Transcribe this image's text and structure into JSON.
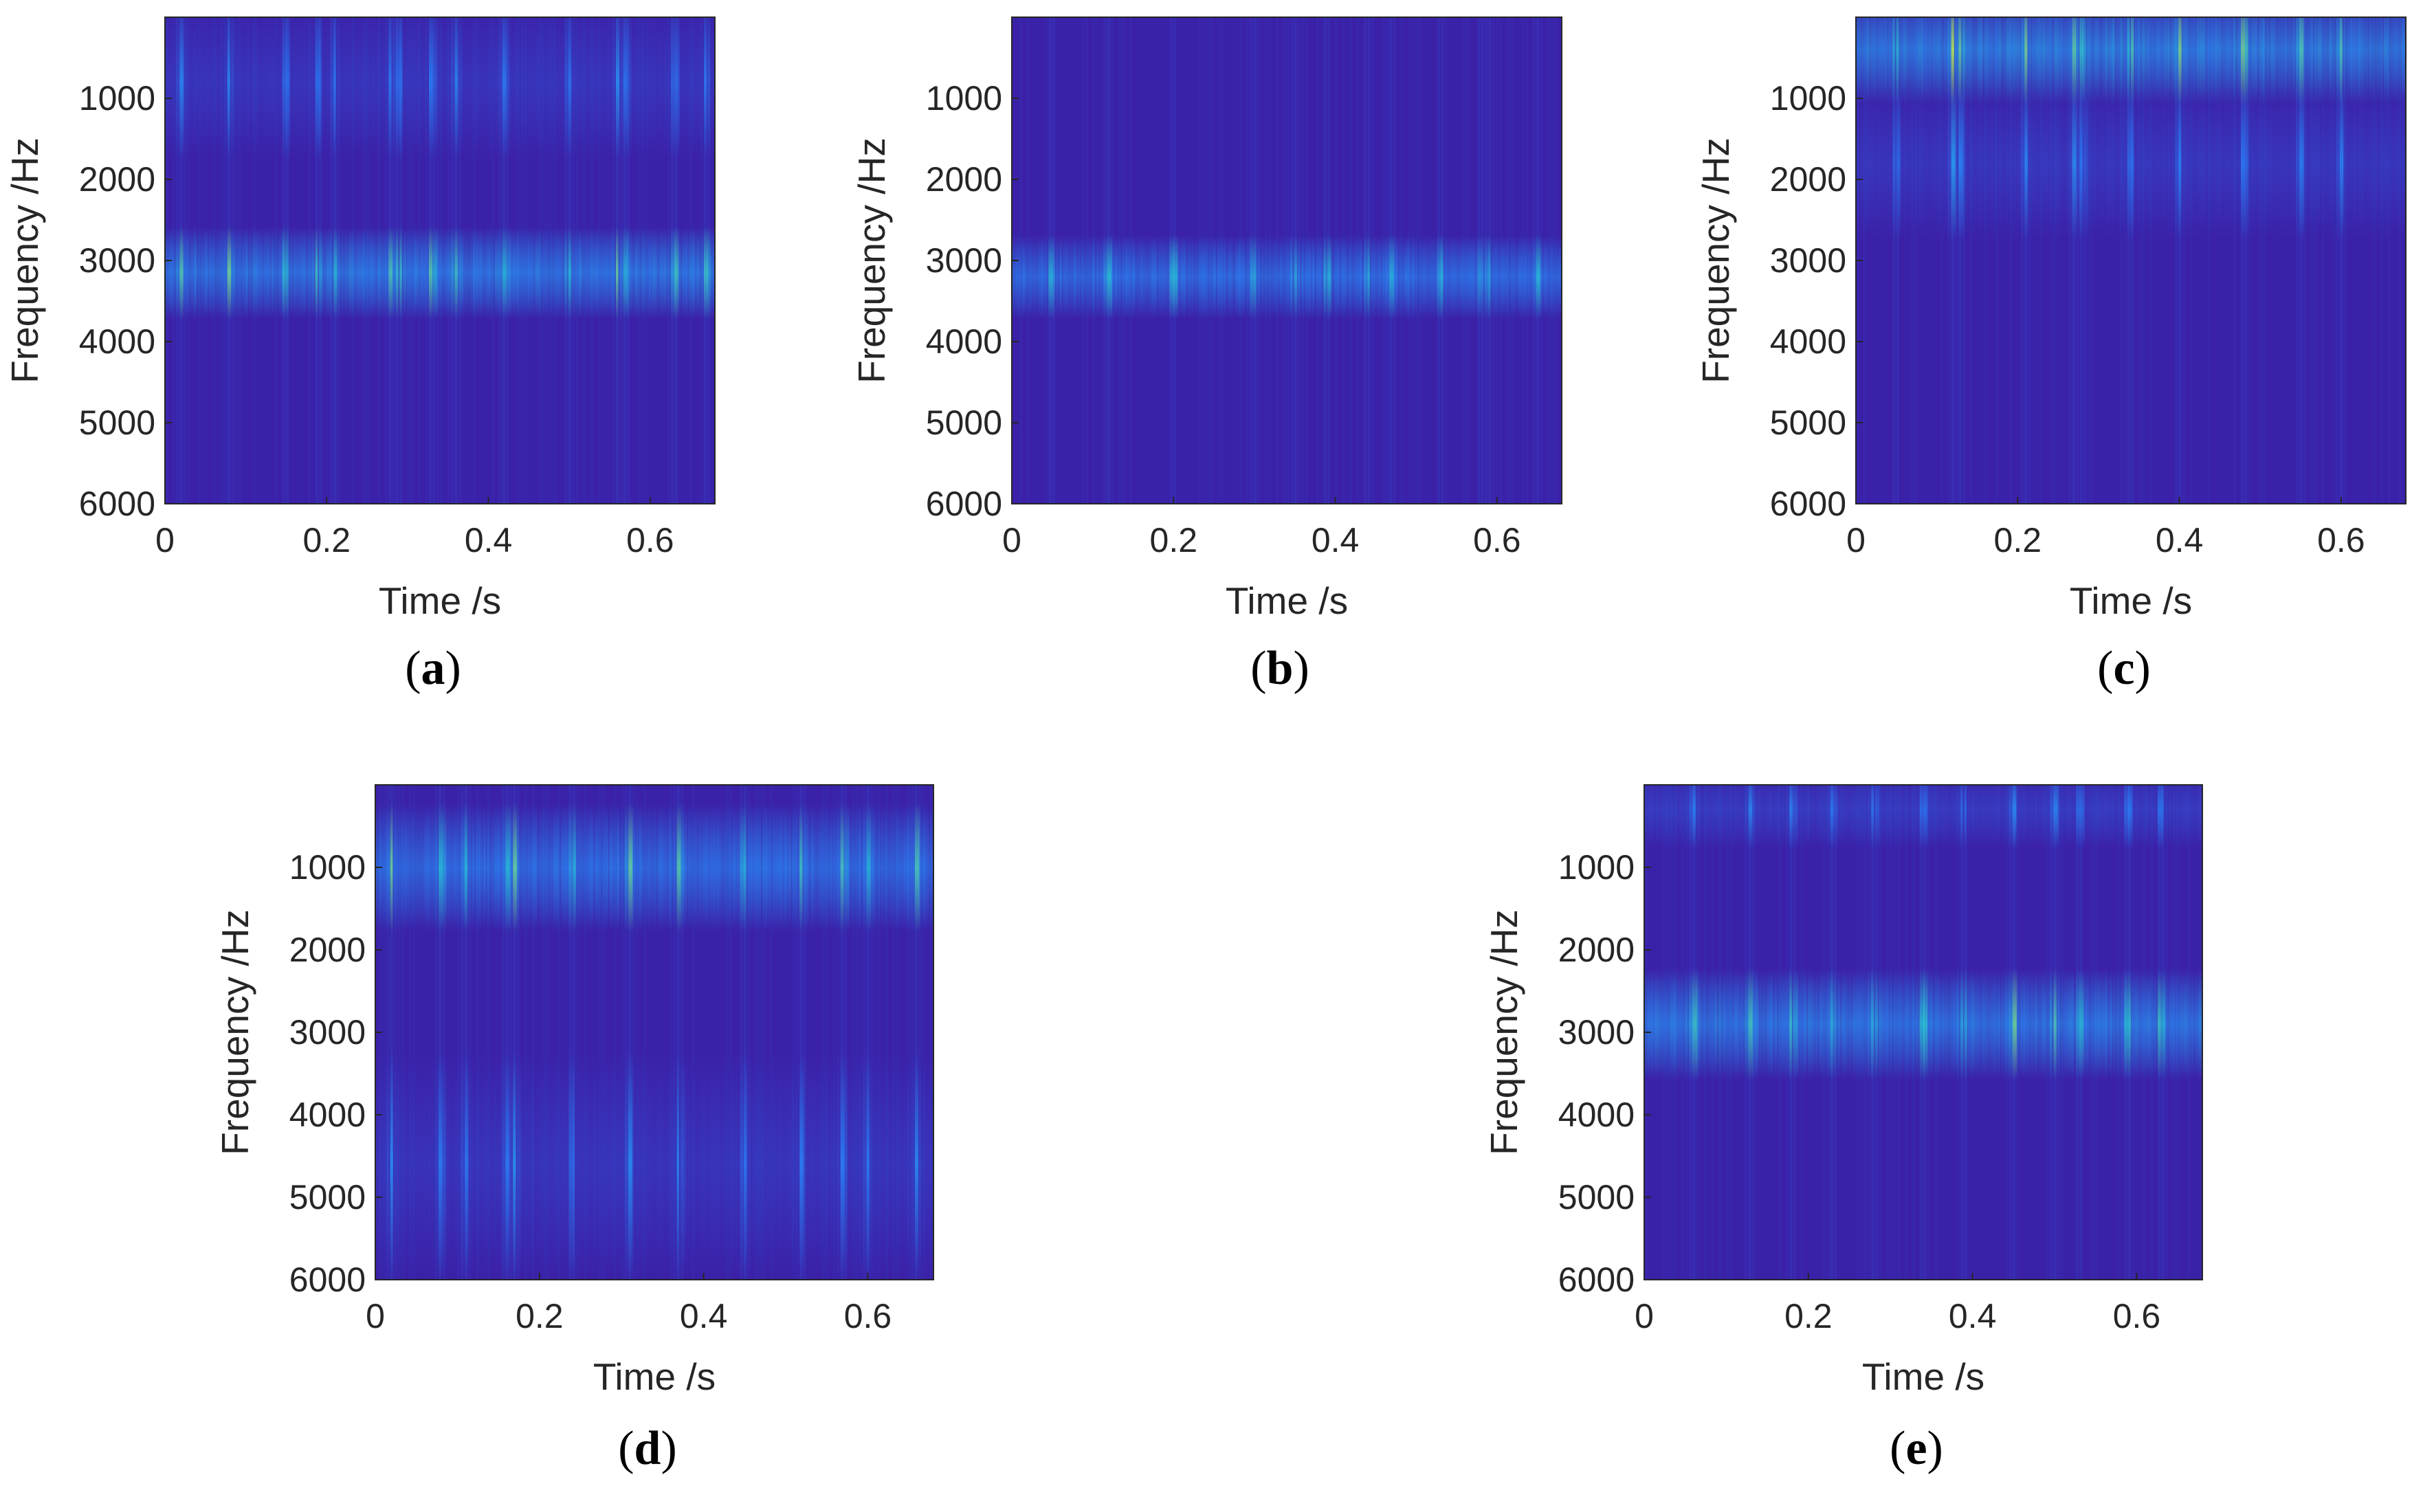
{
  "figure": {
    "colors": {
      "bg": "#3b21a8",
      "low": "#3b29b3",
      "mid": "#2a7ef5",
      "high": "#28c8d0",
      "peak": "#cfe33b"
    }
  },
  "chart_data": [
    {
      "type": "heatmap",
      "panel": "a",
      "title": "",
      "xlabel": "Time /s",
      "ylabel": "Frequency /Hz",
      "xlim": [
        0,
        0.68
      ],
      "ylim": [
        0,
        6000
      ],
      "xticks": [
        "0",
        "0.2",
        "0.4",
        "0.6"
      ],
      "xtick_values": [
        0,
        0.2,
        0.4,
        0.6
      ],
      "yticks": [
        "1000",
        "2000",
        "3000",
        "4000",
        "5000",
        "6000"
      ],
      "ytick_values": [
        1000,
        2000,
        3000,
        4000,
        5000,
        6000
      ],
      "y_reversed": true,
      "energy_bands": [
        {
          "center_hz": 3150,
          "width_hz": 550,
          "level": 0.55
        },
        {
          "center_hz": 800,
          "width_hz": 900,
          "level": 0.1
        }
      ],
      "hot_times_s": [
        0.02,
        0.08,
        0.15,
        0.19,
        0.21,
        0.28,
        0.29,
        0.33,
        0.36,
        0.42,
        0.5,
        0.56,
        0.57,
        0.63,
        0.67
      ],
      "seed": 11
    },
    {
      "type": "heatmap",
      "panel": "b",
      "title": "",
      "xlabel": "Time /s",
      "ylabel": "Frequency /Hz",
      "xlim": [
        0,
        0.68
      ],
      "ylim": [
        0,
        6000
      ],
      "xticks": [
        "0",
        "0.2",
        "0.4",
        "0.6"
      ],
      "xtick_values": [
        0,
        0.2,
        0.4,
        0.6
      ],
      "yticks": [
        "1000",
        "2000",
        "3000",
        "4000",
        "5000",
        "6000"
      ],
      "ytick_values": [
        1000,
        2000,
        3000,
        4000,
        5000,
        6000
      ],
      "y_reversed": true,
      "energy_bands": [
        {
          "center_hz": 3200,
          "width_hz": 500,
          "level": 0.5
        }
      ],
      "hot_times_s": [
        0.05,
        0.12,
        0.2,
        0.3,
        0.35,
        0.39,
        0.44,
        0.47,
        0.53,
        0.58,
        0.59,
        0.65
      ],
      "seed": 23
    },
    {
      "type": "heatmap",
      "panel": "c",
      "title": "",
      "xlabel": "Time /s",
      "ylabel": "Frequency /Hz",
      "xlim": [
        0,
        0.68
      ],
      "ylim": [
        0,
        6000
      ],
      "xticks": [
        "0",
        "0.2",
        "0.4",
        "0.6"
      ],
      "xtick_values": [
        0,
        0.2,
        0.4,
        0.6
      ],
      "yticks": [
        "1000",
        "2000",
        "3000",
        "4000",
        "5000",
        "6000"
      ],
      "ytick_values": [
        1000,
        2000,
        3000,
        4000,
        5000,
        6000
      ],
      "y_reversed": true,
      "energy_bands": [
        {
          "center_hz": 400,
          "width_hz": 650,
          "level": 0.6
        },
        {
          "center_hz": 1800,
          "width_hz": 900,
          "level": 0.12
        }
      ],
      "hot_times_s": [
        0.05,
        0.12,
        0.13,
        0.21,
        0.27,
        0.28,
        0.34,
        0.4,
        0.48,
        0.55,
        0.6
      ],
      "seed": 37
    },
    {
      "type": "heatmap",
      "panel": "d",
      "title": "",
      "xlabel": "Time /s",
      "ylabel": "Frequency /Hz",
      "xlim": [
        0,
        0.68
      ],
      "ylim": [
        0,
        6000
      ],
      "xticks": [
        "0",
        "0.2",
        "0.4",
        "0.6"
      ],
      "xtick_values": [
        0,
        0.2,
        0.4,
        0.6
      ],
      "yticks": [
        "1000",
        "2000",
        "3000",
        "4000",
        "5000",
        "6000"
      ],
      "ytick_values": [
        1000,
        2000,
        3000,
        4000,
        5000,
        6000
      ],
      "y_reversed": true,
      "energy_bands": [
        {
          "center_hz": 1000,
          "width_hz": 750,
          "level": 0.5
        },
        {
          "center_hz": 4600,
          "width_hz": 1300,
          "level": 0.1
        }
      ],
      "hot_times_s": [
        0.02,
        0.08,
        0.11,
        0.16,
        0.17,
        0.24,
        0.31,
        0.37,
        0.45,
        0.52,
        0.57,
        0.6,
        0.66
      ],
      "seed": 53
    },
    {
      "type": "heatmap",
      "panel": "e",
      "title": "",
      "xlabel": "Time /s",
      "ylabel": "Frequency /Hz",
      "xlim": [
        0,
        0.68
      ],
      "ylim": [
        0,
        6000
      ],
      "xticks": [
        "0",
        "0.2",
        "0.4",
        "0.6"
      ],
      "xtick_values": [
        0,
        0.2,
        0.4,
        0.6
      ],
      "yticks": [
        "1000",
        "2000",
        "3000",
        "4000",
        "5000",
        "6000"
      ],
      "ytick_values": [
        1000,
        2000,
        3000,
        4000,
        5000,
        6000
      ],
      "y_reversed": true,
      "energy_bands": [
        {
          "center_hz": 2900,
          "width_hz": 650,
          "level": 0.55
        },
        {
          "center_hz": 300,
          "width_hz": 450,
          "level": 0.15
        }
      ],
      "hot_times_s": [
        0.06,
        0.13,
        0.18,
        0.23,
        0.28,
        0.34,
        0.39,
        0.45,
        0.5,
        0.53,
        0.59,
        0.63
      ],
      "seed": 71
    }
  ],
  "panels": [
    {
      "label_open": "(",
      "label_letter": "a",
      "label_close": ")"
    },
    {
      "label_open": "(",
      "label_letter": "b",
      "label_close": ")"
    },
    {
      "label_open": "(",
      "label_letter": "c",
      "label_close": ")"
    },
    {
      "label_open": "(",
      "label_letter": "d",
      "label_close": ")"
    },
    {
      "label_open": "(",
      "label_letter": "e",
      "label_close": ")"
    }
  ]
}
